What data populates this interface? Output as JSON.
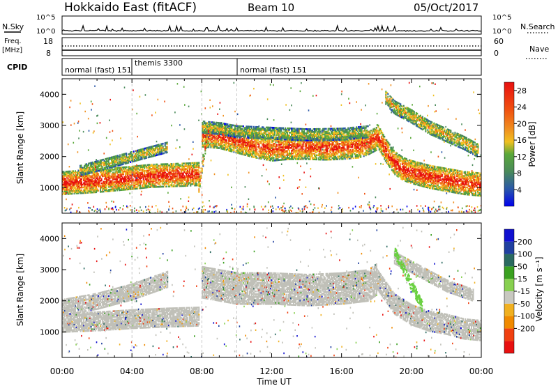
{
  "header": {
    "station": "Hokkaido East (fitACF)",
    "beam": "Beam 10",
    "date": "05/Oct/2017"
  },
  "top_panels": {
    "nsky_label": "N.Sky",
    "nsky_ticks": [
      "10^5",
      "10^0"
    ],
    "nsearch_label": "N.Search",
    "nsearch_ticks": [
      "10^5",
      "10^0"
    ],
    "freq_label_1": "Freq.",
    "freq_label_2": "[MHz]",
    "freq_ticks": [
      "18",
      "8"
    ],
    "nave_label": "Nave",
    "nave_ticks": [
      "60",
      "0"
    ],
    "cpid_label": "CPID",
    "cpid_segments": [
      {
        "label": "normal (fast) 151",
        "start_hour": 0
      },
      {
        "label": "themis 3300",
        "start_hour": 4
      },
      {
        "label": "normal (fast) 151",
        "start_hour": 10
      }
    ]
  },
  "colors": {
    "power_scale": [
      "#0000ee",
      "#2a58a8",
      "#4a8a5a",
      "#5aa83a",
      "#f0c020",
      "#f09020",
      "#f05010",
      "#e81010"
    ],
    "velocity_scale": [
      "#e81010",
      "#f04010",
      "#f08a00",
      "#f0b020",
      "#c8c8c0",
      "#88d050",
      "#3aa020",
      "#2a6a60",
      "#2040a0",
      "#1010d0"
    ],
    "ground_scatter": "#c0c0b8"
  },
  "chart_data": [
    {
      "type": "heatmap",
      "name": "power",
      "ylabel": "Slant Range [km]",
      "yticks": [
        1000,
        2000,
        3000,
        4000
      ],
      "ylim": [
        180,
        4500
      ],
      "xlim": [
        0,
        24
      ],
      "colorbar_label": "Power [dB]",
      "colorbar_ticks": [
        "28",
        "24",
        "20",
        "16",
        "12",
        "8",
        "4"
      ],
      "colorbar_range": [
        0,
        30
      ],
      "bands": [
        {
          "h": [
            0,
            2,
            4,
            5,
            6,
            7,
            7.8
          ],
          "r": [
            1150,
            1220,
            1320,
            1380,
            1400,
            1420,
            1440
          ],
          "w": 360,
          "level": 0.95
        },
        {
          "h": [
            8,
            9,
            10,
            11,
            12,
            13,
            14,
            15,
            16,
            17,
            17.5,
            18
          ],
          "r": [
            2700,
            2650,
            2500,
            2350,
            2250,
            2300,
            2300,
            2280,
            2300,
            2350,
            2450,
            2600
          ],
          "w": 380,
          "level": 0.9
        },
        {
          "h": [
            8,
            9,
            10,
            12,
            14,
            16,
            17.5
          ],
          "r": [
            2950,
            2900,
            2800,
            2750,
            2700,
            2720,
            2800
          ],
          "w": 180,
          "level": 0.55
        },
        {
          "h": [
            18,
            18.5,
            19,
            19.5,
            20,
            21,
            22,
            23,
            24
          ],
          "r": [
            2700,
            2200,
            1800,
            1600,
            1500,
            1350,
            1250,
            1150,
            1100
          ],
          "w": 360,
          "level": 0.95
        },
        {
          "h": [
            1,
            2,
            3,
            4,
            5,
            6
          ],
          "r": [
            1550,
            1700,
            1850,
            2000,
            2150,
            2300
          ],
          "w": 160,
          "level": 0.6
        },
        {
          "h": [
            18.5,
            19,
            20,
            21,
            22,
            23,
            23.8
          ],
          "r": [
            3900,
            3600,
            3300,
            2950,
            2700,
            2450,
            2200
          ],
          "w": 220,
          "level": 0.65
        },
        {
          "h": [
            7.8,
            8.1,
            8.4
          ],
          "r": [
            1000,
            2100,
            3000
          ],
          "w": 180,
          "level": 0.85
        }
      ]
    },
    {
      "type": "heatmap",
      "name": "velocity",
      "ylabel": "Slant Range [km]",
      "yticks": [
        1000,
        2000,
        3000,
        4000
      ],
      "ylim": [
        180,
        4500
      ],
      "xlim": [
        0,
        24
      ],
      "xticks": [
        "00:00",
        "04:00",
        "08:00",
        "12:00",
        "16:00",
        "20:00",
        "00:00"
      ],
      "xlabel": "Time UT",
      "colorbar_label": "Velocity [m s⁻¹]",
      "colorbar_ticks": [
        "200",
        "100",
        "50",
        "15",
        "-15",
        "-50",
        "-100",
        "-200"
      ],
      "colorbar_range": [
        -250,
        250
      ],
      "bands": [
        {
          "h": [
            0,
            2,
            4,
            6,
            7.8
          ],
          "r": [
            1300,
            1350,
            1420,
            1470,
            1500
          ],
          "w": 300
        },
        {
          "h": [
            0,
            2,
            4,
            5,
            6
          ],
          "r": [
            1800,
            2000,
            2300,
            2500,
            2700
          ],
          "w": 260
        },
        {
          "h": [
            8,
            10,
            12,
            14,
            16,
            17.5,
            18
          ],
          "r": [
            2600,
            2400,
            2400,
            2350,
            2400,
            2500,
            2700
          ],
          "w": 500
        },
        {
          "h": [
            18,
            19,
            20,
            21,
            22,
            23,
            24
          ],
          "r": [
            2700,
            1900,
            1550,
            1350,
            1250,
            1100,
            1050
          ],
          "w": 320
        },
        {
          "h": [
            19,
            20,
            21,
            22,
            23.5
          ],
          "r": [
            3400,
            3100,
            2800,
            2500,
            2200
          ],
          "w": 200
        }
      ]
    }
  ]
}
